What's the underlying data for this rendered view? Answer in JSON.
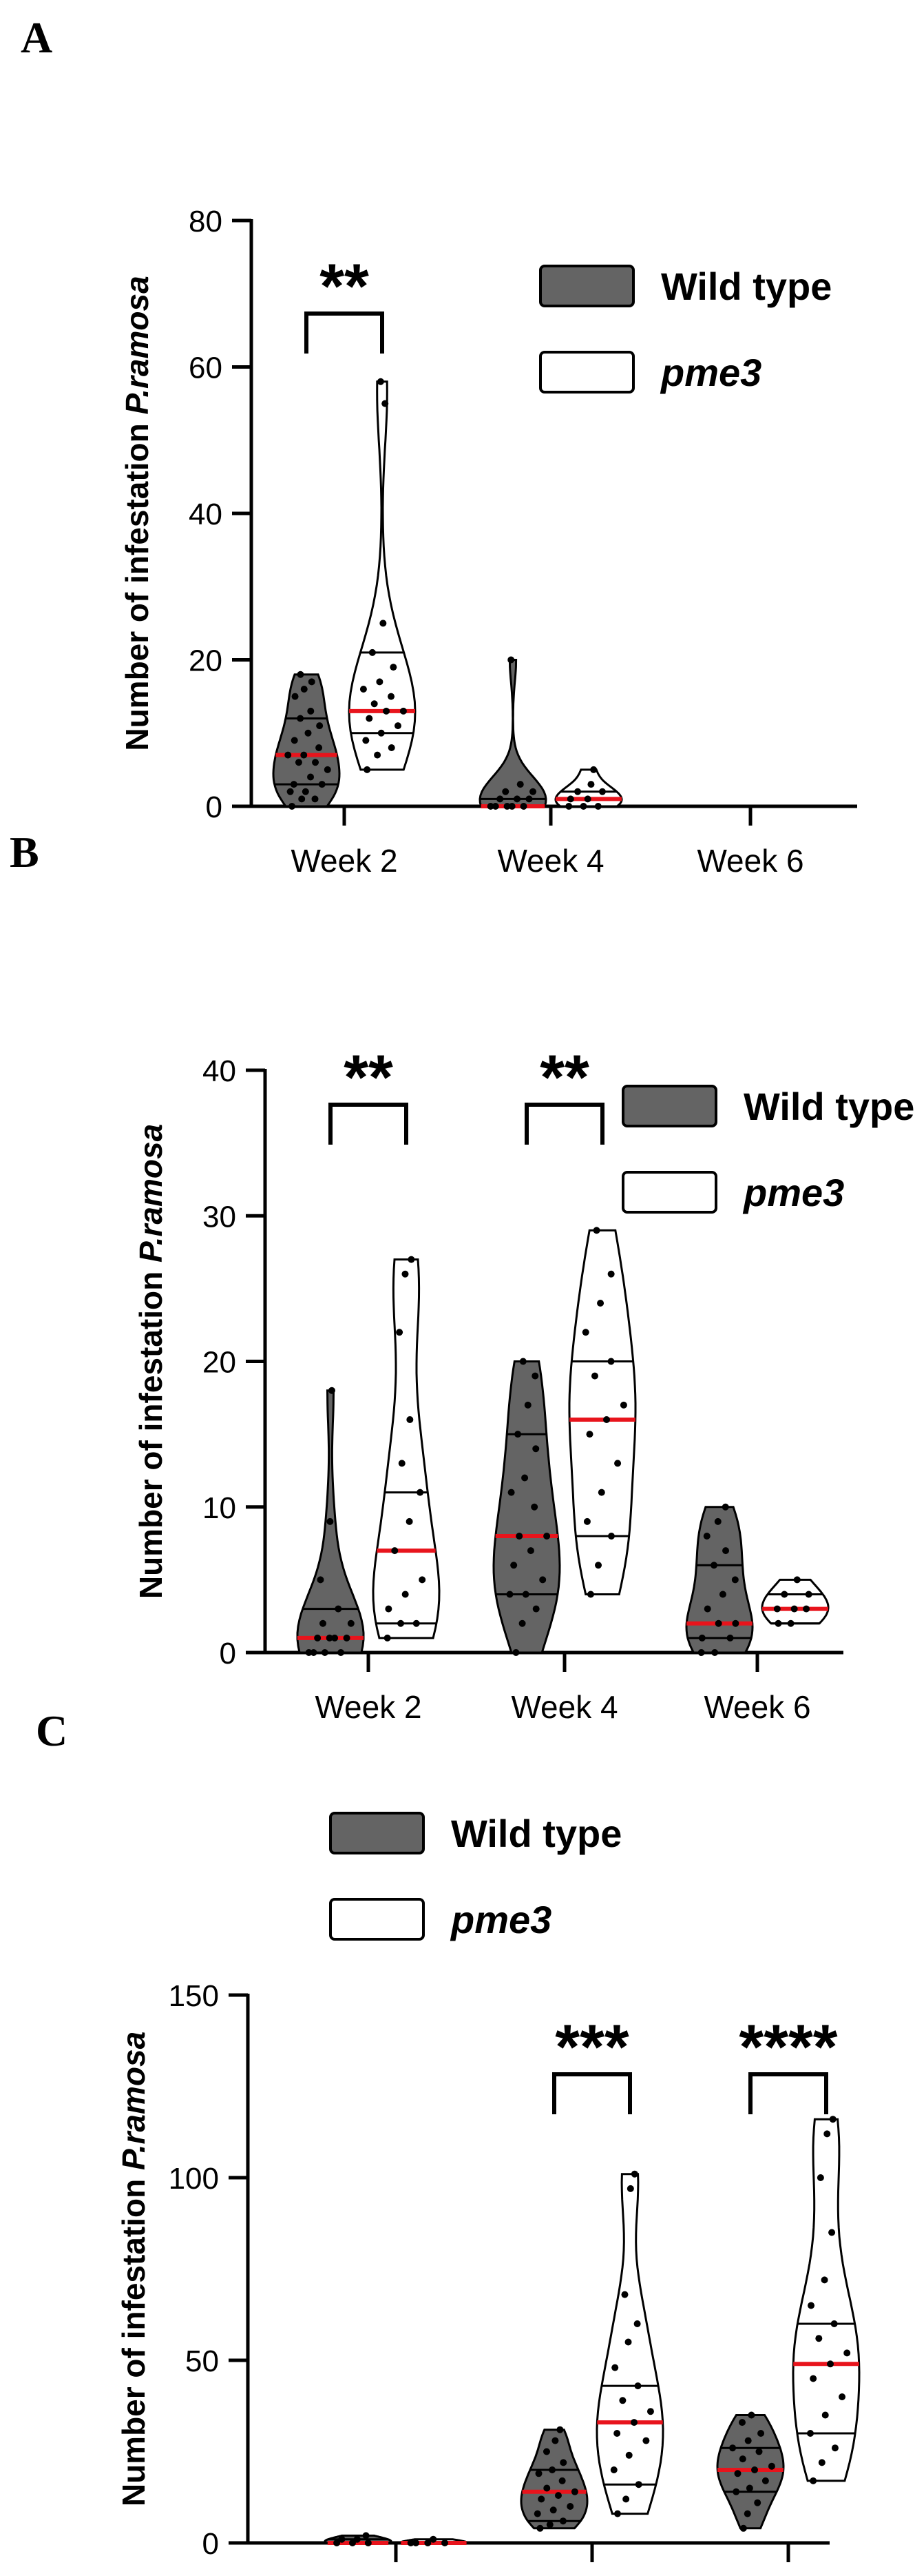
{
  "colors": {
    "wild_type": "#646464",
    "pme3": "#ffffff",
    "median": "#e8141c",
    "axis": "#000000"
  },
  "chart_data": [
    {
      "panel": "A",
      "type": "violin",
      "title": "",
      "xlabel": "",
      "ylabel": "Number of infestation ",
      "ylabel_species": "P.ramosa",
      "ylim": [
        0,
        80
      ],
      "yticks": [
        0,
        20,
        40,
        60,
        80
      ],
      "categories": [
        "Week 2",
        "Week 4",
        "Week 6"
      ],
      "legend": {
        "position": "top-right",
        "entries": [
          "Wild type",
          "pme3"
        ]
      },
      "series": [
        {
          "name": "Wild type",
          "groups": [
            {
              "category": "Week 2",
              "min": 0,
              "max": 18,
              "q1": 3,
              "median": 7,
              "q3": 12,
              "points": [
                0,
                1,
                1,
                2,
                2,
                3,
                3,
                4,
                5,
                6,
                6,
                7,
                7,
                8,
                9,
                10,
                11,
                12,
                13,
                15,
                16,
                17,
                18
              ]
            },
            {
              "category": "Week 4",
              "min": 0,
              "max": 20,
              "q1": 0,
              "median": 0,
              "q3": 1,
              "points": [
                0,
                0,
                0,
                0,
                0,
                1,
                1,
                1,
                2,
                2,
                3,
                20
              ]
            }
          ]
        },
        {
          "name": "pme3",
          "groups": [
            {
              "category": "Week 2",
              "min": 5,
              "max": 58,
              "q1": 10,
              "median": 13,
              "q3": 21,
              "points": [
                5,
                7,
                8,
                9,
                10,
                11,
                12,
                13,
                13,
                14,
                15,
                16,
                17,
                19,
                21,
                25,
                55,
                58
              ]
            },
            {
              "category": "Week 4",
              "min": 0,
              "max": 5,
              "q1": 0,
              "median": 1,
              "q3": 2,
              "points": [
                0,
                0,
                0,
                1,
                1,
                2,
                2,
                3,
                5
              ]
            }
          ]
        }
      ],
      "significance": [
        {
          "category": "Week 2",
          "label": "**"
        }
      ]
    },
    {
      "panel": "B",
      "type": "violin",
      "title": "",
      "xlabel": "",
      "ylabel": "Number of infestation ",
      "ylabel_species": "P.ramosa",
      "ylim": [
        0,
        40
      ],
      "yticks": [
        0,
        10,
        20,
        30,
        40
      ],
      "categories": [
        "Week 2",
        "Week 4",
        "Week 6"
      ],
      "legend": {
        "position": "top-right",
        "entries": [
          "Wild type",
          "pme3"
        ]
      },
      "series": [
        {
          "name": "Wild type",
          "groups": [
            {
              "category": "Week 2",
              "min": 0,
              "max": 18,
              "q1": 0,
              "median": 1,
              "q3": 3,
              "points": [
                0,
                0,
                0,
                0,
                1,
                1,
                1,
                1,
                2,
                2,
                3,
                5,
                9,
                18
              ]
            },
            {
              "category": "Week 4",
              "min": 0,
              "max": 20,
              "q1": 4,
              "median": 8,
              "q3": 15,
              "points": [
                0,
                2,
                3,
                4,
                4,
                5,
                6,
                7,
                8,
                8,
                10,
                11,
                12,
                14,
                15,
                17,
                19,
                20
              ]
            },
            {
              "category": "Week 6",
              "min": 0,
              "max": 10,
              "q1": 1,
              "median": 2,
              "q3": 6,
              "points": [
                0,
                0,
                1,
                1,
                2,
                2,
                3,
                4,
                5,
                6,
                7,
                8,
                9,
                10
              ]
            }
          ]
        },
        {
          "name": "pme3",
          "groups": [
            {
              "category": "Week 2",
              "min": 1,
              "max": 27,
              "q1": 2,
              "median": 7,
              "q3": 11,
              "points": [
                1,
                2,
                2,
                3,
                4,
                5,
                7,
                9,
                11,
                13,
                16,
                22,
                26,
                27
              ]
            },
            {
              "category": "Week 4",
              "min": 4,
              "max": 29,
              "q1": 8,
              "median": 16,
              "q3": 20,
              "points": [
                4,
                6,
                8,
                9,
                11,
                13,
                15,
                16,
                17,
                19,
                20,
                22,
                24,
                26,
                29
              ]
            },
            {
              "category": "Week 6",
              "min": 2,
              "max": 5,
              "q1": 2,
              "median": 3,
              "q3": 4,
              "points": [
                2,
                2,
                3,
                3,
                3,
                4,
                4,
                5
              ]
            }
          ]
        }
      ],
      "significance": [
        {
          "category": "Week 2",
          "label": "**"
        },
        {
          "category": "Week 4",
          "label": "**"
        }
      ]
    },
    {
      "panel": "C",
      "type": "violin",
      "title": "",
      "xlabel": "",
      "ylabel": "Number of infestation ",
      "ylabel_species": "P.ramosa",
      "ylim": [
        0,
        150
      ],
      "yticks": [
        0,
        50,
        100,
        150
      ],
      "categories": [
        "",
        "",
        ""
      ],
      "legend": {
        "position": "top-left",
        "entries": [
          "Wild type",
          "pme3"
        ]
      },
      "series": [
        {
          "name": "Wild type",
          "groups": [
            {
              "category": "1",
              "min": 0,
              "max": 2,
              "q1": 0,
              "median": 0,
              "q3": 1,
              "points": [
                0,
                0,
                0,
                1,
                1,
                2
              ]
            },
            {
              "category": "2",
              "min": 4,
              "max": 31,
              "q1": 6,
              "median": 14,
              "q3": 20,
              "points": [
                4,
                5,
                6,
                8,
                9,
                10,
                12,
                13,
                14,
                15,
                17,
                19,
                20,
                22,
                25,
                28,
                31
              ]
            },
            {
              "category": "3",
              "min": 4,
              "max": 35,
              "q1": 14,
              "median": 20,
              "q3": 26,
              "points": [
                4,
                8,
                11,
                14,
                15,
                17,
                19,
                20,
                21,
                23,
                25,
                26,
                28,
                30,
                33,
                35
              ]
            }
          ]
        },
        {
          "name": "pme3",
          "groups": [
            {
              "category": "1",
              "min": 0,
              "max": 1,
              "q1": 0,
              "median": 0,
              "q3": 0,
              "points": [
                0,
                0,
                0,
                0,
                1
              ]
            },
            {
              "category": "2",
              "min": 8,
              "max": 101,
              "q1": 16,
              "median": 33,
              "q3": 43,
              "points": [
                8,
                12,
                16,
                20,
                24,
                28,
                30,
                33,
                36,
                39,
                43,
                48,
                55,
                60,
                68,
                97,
                101
              ]
            },
            {
              "category": "3",
              "min": 17,
              "max": 116,
              "q1": 30,
              "median": 49,
              "q3": 60,
              "points": [
                17,
                22,
                26,
                30,
                35,
                40,
                45,
                49,
                52,
                56,
                60,
                65,
                72,
                85,
                100,
                112,
                116
              ]
            }
          ]
        }
      ],
      "significance": [
        {
          "category": "2",
          "label": "***"
        },
        {
          "category": "3",
          "label": "****"
        }
      ]
    }
  ],
  "panels": [
    "A",
    "B",
    "C"
  ]
}
